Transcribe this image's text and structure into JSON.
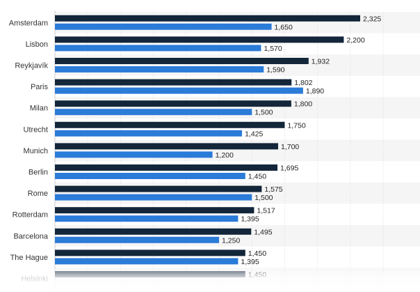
{
  "chart_data": {
    "type": "bar",
    "orientation": "horizontal",
    "categories": [
      "Amsterdam",
      "Lisbon",
      "Reykjavík",
      "Paris",
      "Milan",
      "Utrecht",
      "Munich",
      "Berlin",
      "Rome",
      "Rotterdam",
      "Barcelona",
      "The Hague",
      "Helsinki"
    ],
    "series": [
      {
        "color": "#13263a",
        "values": [
          2325,
          2200,
          1932,
          1802,
          1800,
          1750,
          1700,
          1695,
          1575,
          1517,
          1495,
          1450,
          1450
        ]
      },
      {
        "color": "#2b7bd8",
        "values": [
          1650,
          1570,
          1590,
          1890,
          1500,
          1425,
          1200,
          1450,
          1500,
          1395,
          1250,
          1395,
          null
        ]
      }
    ],
    "value_labels": [
      [
        "2,325",
        "2,200",
        "1,932",
        "1,802",
        "1,800",
        "1,750",
        "1,700",
        "1,695",
        "1,575",
        "1,517",
        "1,495",
        "1,450",
        "1,450"
      ],
      [
        "1,650",
        "1,570",
        "1,590",
        "1,890",
        "1,500",
        "1,425",
        "1,200",
        "1,450",
        "1,500",
        "1,395",
        "1,250",
        "1,395",
        ""
      ]
    ],
    "xlim": [
      0,
      2500
    ],
    "grid": true,
    "legend": "none",
    "title": "",
    "xlabel": "",
    "ylabel": ""
  }
}
